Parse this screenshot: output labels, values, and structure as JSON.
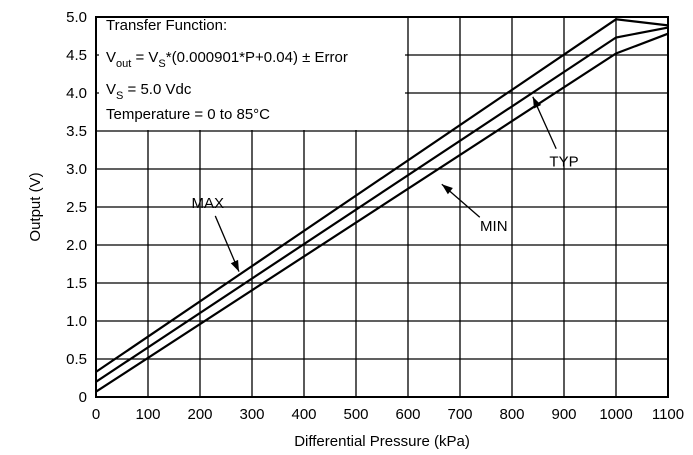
{
  "chart_data": {
    "type": "line",
    "title": "",
    "xlabel": "Differential Pressure (kPa)",
    "ylabel": "Output (V)",
    "xlim": [
      0,
      1100
    ],
    "ylim": [
      0,
      5.0
    ],
    "xticks": [
      "0",
      "100",
      "200",
      "300",
      "400",
      "500",
      "600",
      "700",
      "800",
      "900",
      "1000",
      "1100"
    ],
    "yticks": [
      "0",
      "0.5",
      "1.0",
      "1.5",
      "2.0",
      "2.5",
      "3.0",
      "3.5",
      "4.0",
      "4.5",
      "5.0"
    ],
    "grid": true,
    "series": [
      {
        "name": "MAX",
        "x": [
          0,
          1000,
          1100
        ],
        "y": [
          0.33,
          4.97,
          4.89
        ]
      },
      {
        "name": "TYP",
        "x": [
          0,
          1000,
          1100
        ],
        "y": [
          0.2,
          4.73,
          4.86
        ]
      },
      {
        "name": "MIN",
        "x": [
          0,
          1000,
          1100
        ],
        "y": [
          0.07,
          4.52,
          4.78
        ]
      }
    ],
    "annotation_box": {
      "line1": "Transfer Function:",
      "line2_prefix": "V",
      "line2_sub": "out",
      "line2_mid": " = V",
      "line2_sub2": "S",
      "line2_suffix": "*(0.000901*P+0.04) ± Error",
      "line3_prefix": "V",
      "line3_sub": "S",
      "line3_suffix": " = 5.0 Vdc",
      "line4": "Temperature = 0 to 85°C"
    },
    "callouts": [
      {
        "label": "MAX",
        "series": "MAX",
        "x_text": 215,
        "y_text": 2.55,
        "x_tip": 275,
        "y_tip": 1.65
      },
      {
        "label": "TYP",
        "series": "TYP",
        "x_text": 900,
        "y_text": 3.1,
        "x_tip": 840,
        "y_tip": 3.95
      },
      {
        "label": "MIN",
        "series": "MIN",
        "x_text": 765,
        "y_text": 2.25,
        "x_tip": 665,
        "y_tip": 2.8
      }
    ]
  }
}
